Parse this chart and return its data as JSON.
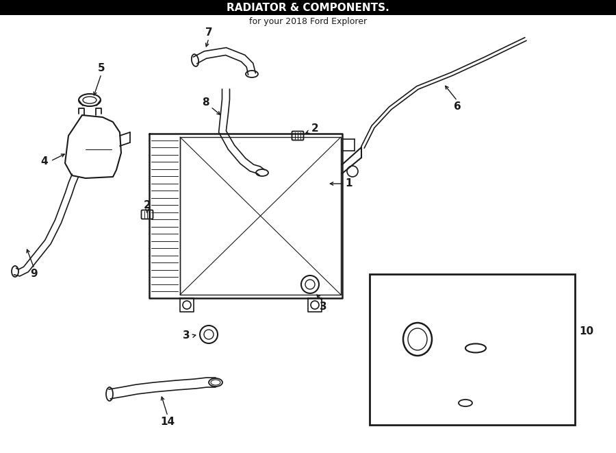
{
  "title": "RADIATOR & COMPONENTS.",
  "subtitle": "for your 2018 Ford Explorer",
  "bg_color": "#ffffff",
  "line_color": "#1a1a1a",
  "fig_width": 9.0,
  "fig_height": 6.61,
  "dpi": 100
}
